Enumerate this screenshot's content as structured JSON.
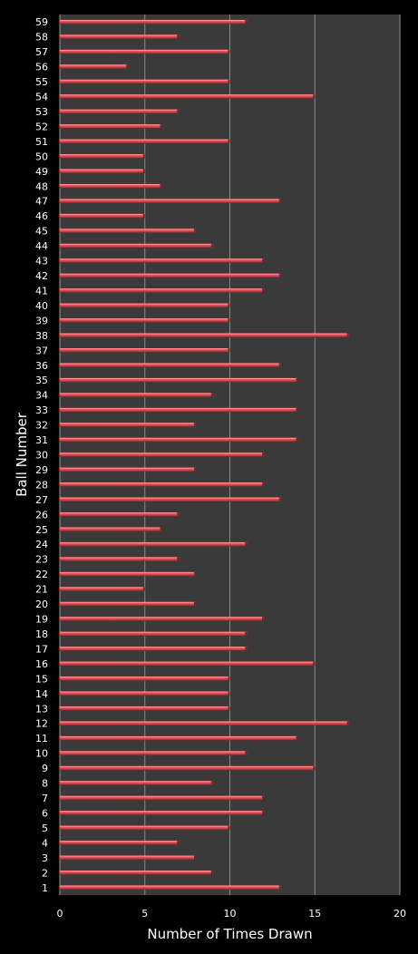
{
  "chart_data": {
    "type": "bar",
    "orientation": "horizontal",
    "xlabel": "Number of Times Drawn",
    "ylabel": "Ball Number",
    "xlim": [
      0,
      20
    ],
    "xticks": [
      0,
      5,
      10,
      15,
      20
    ],
    "grid": true,
    "categories": [
      "1",
      "2",
      "3",
      "4",
      "5",
      "6",
      "7",
      "8",
      "9",
      "10",
      "11",
      "12",
      "13",
      "14",
      "15",
      "16",
      "17",
      "18",
      "19",
      "20",
      "21",
      "22",
      "23",
      "24",
      "25",
      "26",
      "27",
      "28",
      "29",
      "30",
      "31",
      "32",
      "33",
      "34",
      "35",
      "36",
      "37",
      "38",
      "39",
      "40",
      "41",
      "42",
      "43",
      "44",
      "45",
      "46",
      "47",
      "48",
      "49",
      "50",
      "51",
      "52",
      "53",
      "54",
      "55",
      "56",
      "57",
      "58",
      "59"
    ],
    "values": [
      13,
      9,
      8,
      7,
      10,
      12,
      12,
      9,
      15,
      11,
      14,
      17,
      10,
      10,
      10,
      15,
      11,
      11,
      12,
      8,
      5,
      8,
      7,
      11,
      6,
      7,
      13,
      12,
      8,
      12,
      14,
      8,
      14,
      9,
      14,
      13,
      10,
      17,
      10,
      10,
      12,
      13,
      12,
      9,
      8,
      5,
      13,
      6,
      5,
      5,
      10,
      6,
      7,
      15,
      10,
      4,
      10,
      7,
      11
    ],
    "colors": {
      "bar": "#e0474c",
      "bar_light": "#ff9a9c",
      "bar_dark": "#8c1d22",
      "plot_bg": "#3a3a3a",
      "grid": "#8a8a8a"
    }
  }
}
